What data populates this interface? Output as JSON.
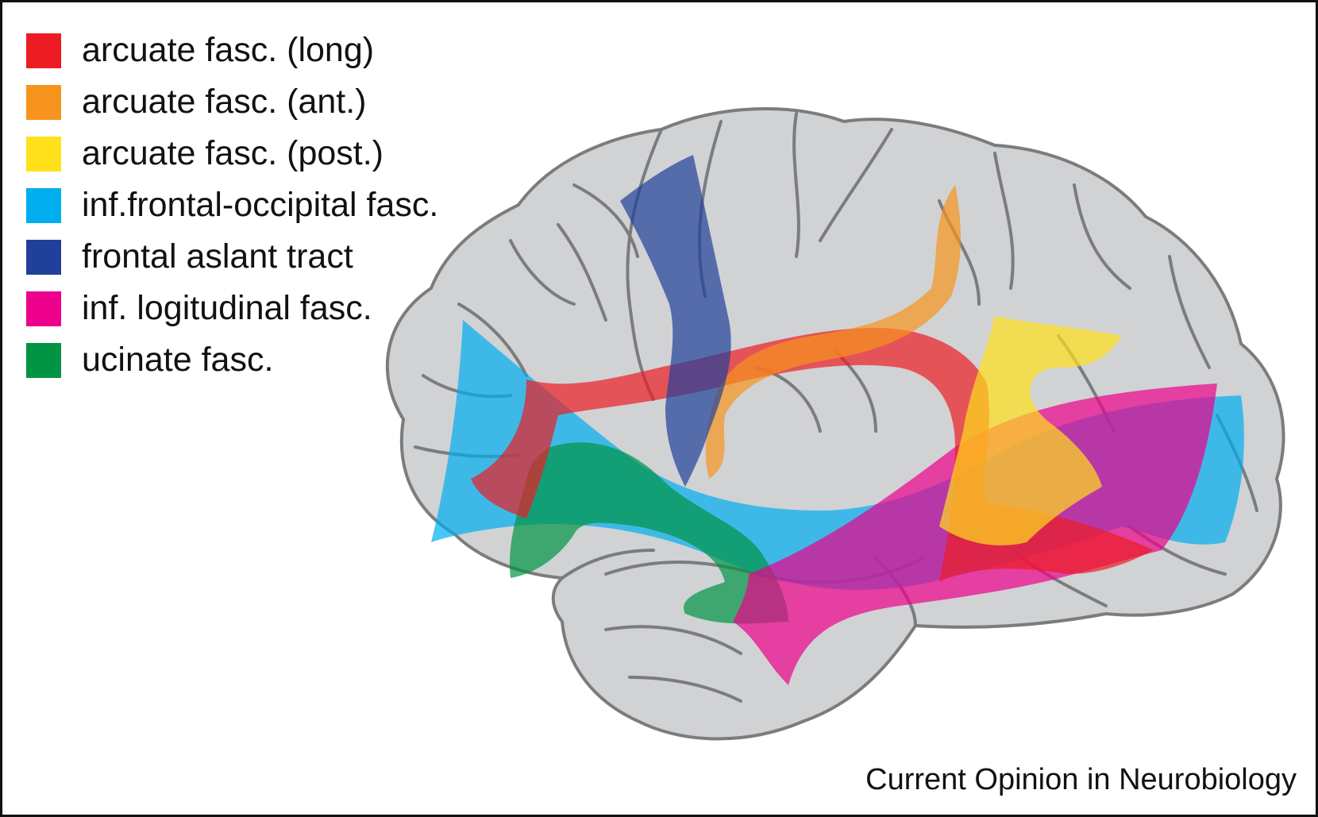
{
  "legend": [
    {
      "label": "arcuate fasc. (long)",
      "color": "#ed1c24"
    },
    {
      "label": "arcuate fasc. (ant.)",
      "color": "#f7941d"
    },
    {
      "label": "arcuate fasc. (post.)",
      "color": "#ffe01b"
    },
    {
      "label": "inf.frontal-occipital fasc.",
      "color": "#00aeef"
    },
    {
      "label": "frontal aslant tract",
      "color": "#21409a"
    },
    {
      "label": "inf. logitudinal fasc.",
      "color": "#ec008c"
    },
    {
      "label": "ucinate fasc.",
      "color": "#009444"
    }
  ],
  "brain": {
    "fill": "#d1d2d4",
    "outline": "#7b7c7e"
  },
  "credit": "Current Opinion in Neurobiology"
}
